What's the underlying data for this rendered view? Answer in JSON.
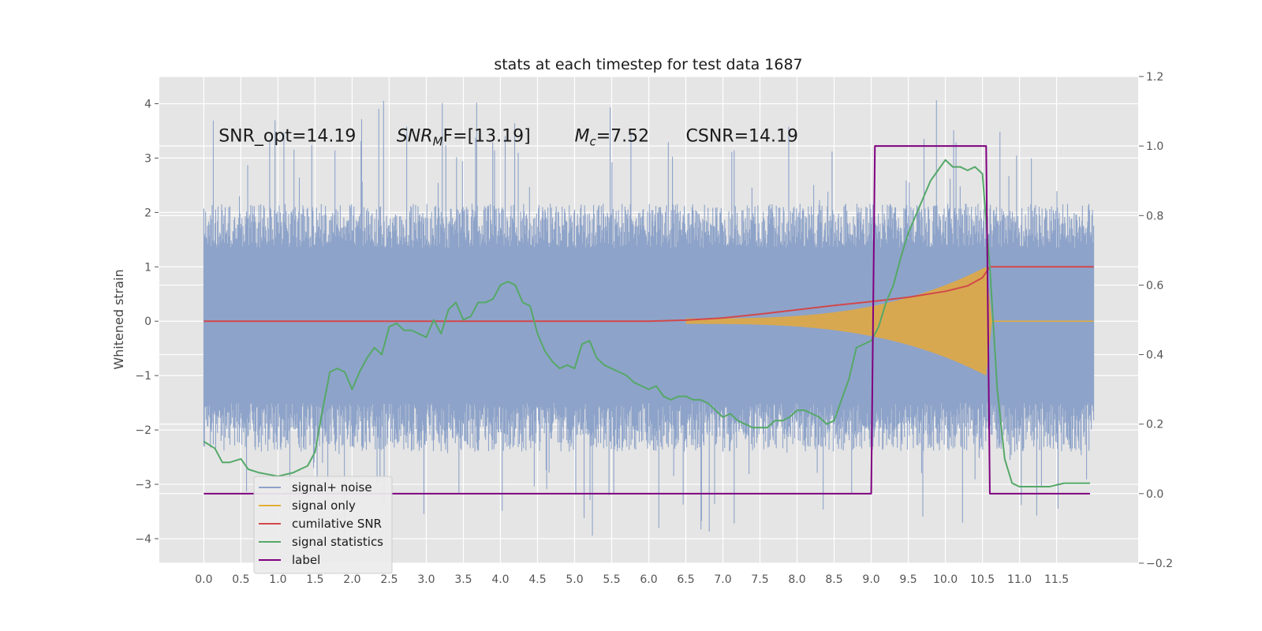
{
  "chart_data": {
    "type": "line",
    "title": "stats at each timestep for test data 1687",
    "ylabel": "Whitened strain",
    "ylabel_right": "",
    "xlim": [
      -0.6,
      12.6
    ],
    "ylim": [
      -4.45,
      4.5
    ],
    "ylim_right": [
      -0.2,
      1.2
    ],
    "grid": true,
    "legend_position": "lower-left",
    "x_ticks": [
      "0.0",
      "0.5",
      "1.0",
      "1.5",
      "2.0",
      "2.5",
      "3.0",
      "3.5",
      "4.0",
      "4.5",
      "5.0",
      "5.5",
      "6.0",
      "6.5",
      "7.0",
      "7.5",
      "8.0",
      "8.5",
      "9.0",
      "9.5",
      "10.0",
      "10.5",
      "11.0",
      "11.5"
    ],
    "y_ticks_left": [
      "−4",
      "−3",
      "−2",
      "−1",
      "0",
      "1",
      "2",
      "3",
      "4"
    ],
    "y_ticks_right": [
      "−0.2",
      "0.0",
      "0.2",
      "0.4",
      "0.6",
      "0.8",
      "1.0",
      "1.2"
    ],
    "annotations": [
      {
        "text": "SNR_opt=14.19",
        "x": 0.2,
        "y": 3.3
      },
      {
        "text": "SNR",
        "sub": "M",
        "tail": "F=[13.19]",
        "x": 2.6,
        "y": 3.3,
        "italic": true
      },
      {
        "text": "M",
        "sub": "c",
        "tail": "=7.52",
        "x": 5.0,
        "y": 3.3,
        "italic": true
      },
      {
        "text": "CSNR=14.19",
        "x": 6.5,
        "y": 3.3
      }
    ],
    "series": [
      {
        "name": "signal+ noise",
        "color": "#8ea3c9",
        "axis": "left",
        "envelope": {
          "x_range": [
            0.0,
            12.0
          ],
          "typical_high": 1.8,
          "typical_low": -2.0,
          "spike_high": 4.1,
          "spike_low": -4.0
        }
      },
      {
        "name": "signal only",
        "color": "#e5ae38",
        "axis": "left",
        "chirp": {
          "start": 6.5,
          "end": 10.55,
          "max_amplitude": 1.0
        }
      },
      {
        "name": "cumilative SNR",
        "color": "#d1484b",
        "axis": "left",
        "x": [
          0.0,
          6.0,
          6.5,
          7.0,
          7.5,
          8.0,
          8.5,
          9.0,
          9.5,
          10.0,
          10.3,
          10.5,
          10.6,
          12.0
        ],
        "y": [
          0.0,
          0.0,
          0.02,
          0.06,
          0.13,
          0.21,
          0.29,
          0.36,
          0.44,
          0.55,
          0.65,
          0.8,
          1.0,
          1.0
        ]
      },
      {
        "name": "signal statistics",
        "color": "#55a868",
        "axis": "right",
        "x": [
          0.0,
          0.15,
          0.25,
          0.35,
          0.5,
          0.6,
          0.75,
          1.0,
          1.2,
          1.4,
          1.5,
          1.6,
          1.7,
          1.8,
          1.9,
          2.0,
          2.1,
          2.2,
          2.3,
          2.4,
          2.5,
          2.6,
          2.7,
          2.8,
          2.9,
          3.0,
          3.1,
          3.2,
          3.3,
          3.4,
          3.5,
          3.6,
          3.7,
          3.8,
          3.9,
          4.0,
          4.1,
          4.2,
          4.3,
          4.4,
          4.5,
          4.6,
          4.7,
          4.8,
          4.9,
          5.0,
          5.1,
          5.2,
          5.3,
          5.4,
          5.5,
          5.6,
          5.7,
          5.8,
          5.9,
          6.0,
          6.1,
          6.2,
          6.3,
          6.4,
          6.5,
          6.6,
          6.7,
          6.8,
          6.9,
          7.0,
          7.1,
          7.2,
          7.3,
          7.4,
          7.5,
          7.6,
          7.7,
          7.8,
          7.9,
          8.0,
          8.1,
          8.2,
          8.3,
          8.4,
          8.5,
          8.6,
          8.7,
          8.8,
          8.9,
          9.0,
          9.1,
          9.2,
          9.3,
          9.4,
          9.5,
          9.6,
          9.7,
          9.8,
          9.9,
          10.0,
          10.1,
          10.2,
          10.3,
          10.4,
          10.5,
          10.6,
          10.7,
          10.8,
          10.9,
          11.0,
          11.2,
          11.4,
          11.6,
          11.8,
          11.95
        ],
        "y": [
          0.15,
          0.13,
          0.09,
          0.09,
          0.1,
          0.07,
          0.06,
          0.05,
          0.06,
          0.08,
          0.12,
          0.24,
          0.35,
          0.36,
          0.35,
          0.3,
          0.35,
          0.39,
          0.42,
          0.4,
          0.48,
          0.49,
          0.47,
          0.47,
          0.46,
          0.45,
          0.5,
          0.46,
          0.53,
          0.55,
          0.5,
          0.51,
          0.55,
          0.55,
          0.56,
          0.6,
          0.61,
          0.6,
          0.55,
          0.54,
          0.46,
          0.41,
          0.38,
          0.36,
          0.37,
          0.36,
          0.43,
          0.44,
          0.39,
          0.37,
          0.36,
          0.35,
          0.34,
          0.32,
          0.31,
          0.3,
          0.31,
          0.28,
          0.27,
          0.28,
          0.28,
          0.27,
          0.27,
          0.26,
          0.24,
          0.22,
          0.23,
          0.21,
          0.2,
          0.19,
          0.19,
          0.19,
          0.21,
          0.21,
          0.22,
          0.24,
          0.24,
          0.23,
          0.22,
          0.2,
          0.21,
          0.27,
          0.33,
          0.42,
          0.43,
          0.44,
          0.48,
          0.55,
          0.6,
          0.68,
          0.75,
          0.8,
          0.85,
          0.9,
          0.93,
          0.96,
          0.94,
          0.94,
          0.93,
          0.94,
          0.92,
          0.65,
          0.3,
          0.1,
          0.03,
          0.02,
          0.02,
          0.02,
          0.03,
          0.03,
          0.03
        ]
      },
      {
        "name": "label",
        "color": "#800080",
        "axis": "right",
        "x": [
          0.0,
          9.0,
          9.05,
          10.55,
          10.6,
          11.95
        ],
        "y": [
          0.0,
          0.0,
          1.0,
          1.0,
          0.0,
          0.0
        ]
      }
    ]
  }
}
